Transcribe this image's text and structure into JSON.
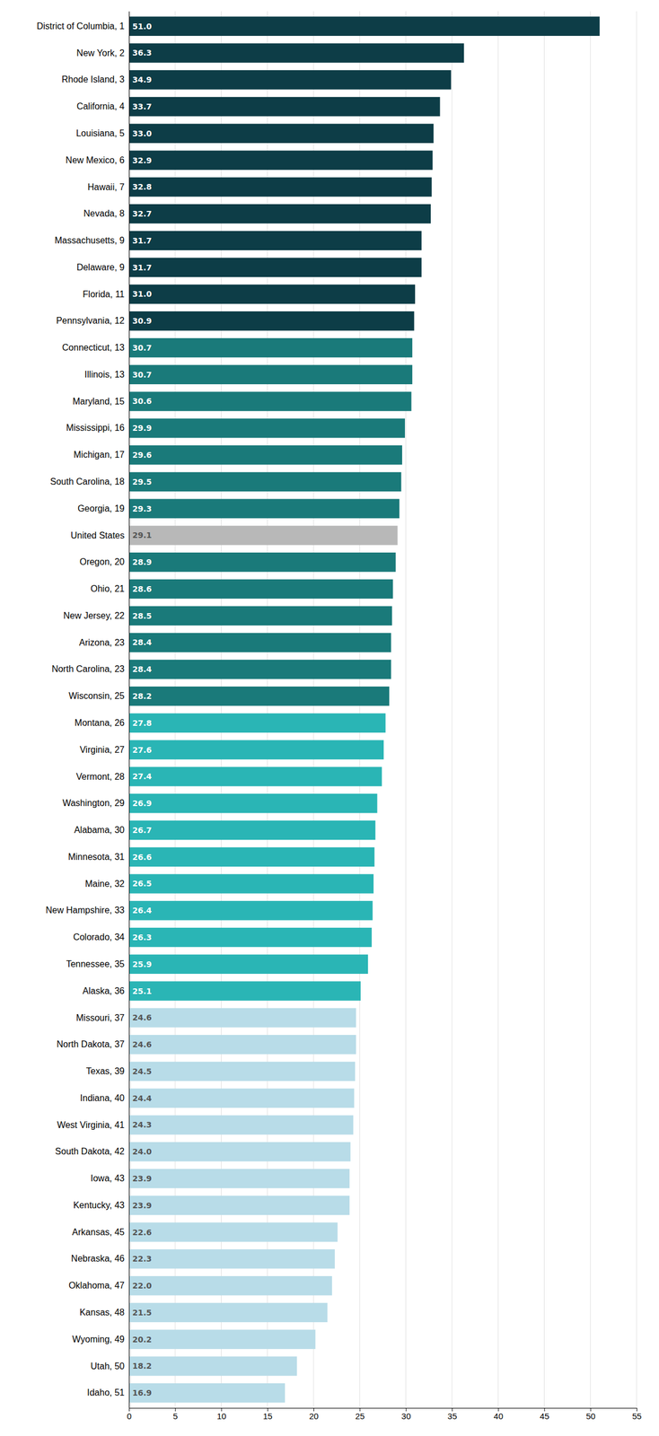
{
  "chart_data": {
    "type": "bar",
    "orientation": "horizontal",
    "categories": [
      "District of Columbia, 1",
      "New York, 2",
      "Rhode Island, 3",
      "California, 4",
      "Louisiana, 5",
      "New Mexico, 6",
      "Hawaii, 7",
      "Nevada, 8",
      "Massachusetts, 9",
      "Delaware, 9",
      "Florida, 11",
      "Pennsylvania, 12",
      "Connecticut, 13",
      "Illinois, 13",
      "Maryland, 15",
      "Mississippi, 16",
      "Michigan, 17",
      "South Carolina, 18",
      "Georgia, 19",
      "United States",
      "Oregon, 20",
      "Ohio, 21",
      "New Jersey, 22",
      "Arizona, 23",
      "North Carolina, 23",
      "Wisconsin, 25",
      "Montana, 26",
      "Virginia, 27",
      "Vermont, 28",
      "Washington, 29",
      "Alabama, 30",
      "Minnesota, 31",
      "Maine, 32",
      "New Hampshire, 33",
      "Colorado, 34",
      "Tennessee, 35",
      "Alaska, 36",
      "Missouri, 37",
      "North Dakota, 37",
      "Texas, 39",
      "Indiana, 40",
      "West Virginia, 41",
      "South Dakota, 42",
      "Iowa, 43",
      "Kentucky, 43",
      "Arkansas, 45",
      "Nebraska, 46",
      "Oklahoma, 47",
      "Kansas, 48",
      "Wyoming, 49",
      "Utah, 50",
      "Idaho, 51"
    ],
    "values": [
      51.0,
      36.3,
      34.9,
      33.7,
      33.0,
      32.9,
      32.8,
      32.7,
      31.7,
      31.7,
      31.0,
      30.9,
      30.7,
      30.7,
      30.6,
      29.9,
      29.6,
      29.5,
      29.3,
      29.1,
      28.9,
      28.6,
      28.5,
      28.4,
      28.4,
      28.2,
      27.8,
      27.6,
      27.4,
      26.9,
      26.7,
      26.6,
      26.5,
      26.4,
      26.3,
      25.9,
      25.1,
      24.6,
      24.6,
      24.5,
      24.4,
      24.3,
      24.0,
      23.9,
      23.9,
      22.6,
      22.3,
      22.0,
      21.5,
      20.2,
      18.2,
      16.9
    ],
    "value_labels": [
      "51.0",
      "36.3",
      "34.9",
      "33.7",
      "33.0",
      "32.9",
      "32.8",
      "32.7",
      "31.7",
      "31.7",
      "31.0",
      "30.9",
      "30.7",
      "30.7",
      "30.6",
      "29.9",
      "29.6",
      "29.5",
      "29.3",
      "29.1",
      "28.9",
      "28.6",
      "28.5",
      "28.4",
      "28.4",
      "28.2",
      "27.8",
      "27.6",
      "27.4",
      "26.9",
      "26.7",
      "26.6",
      "26.5",
      "26.4",
      "26.3",
      "25.9",
      "25.1",
      "24.6",
      "24.6",
      "24.5",
      "24.4",
      "24.3",
      "24.0",
      "23.9",
      "23.9",
      "22.6",
      "22.3",
      "22.0",
      "21.5",
      "20.2",
      "18.2",
      "16.9"
    ],
    "colors": [
      "#0d3d47",
      "#0d3d47",
      "#0d3d47",
      "#0d3d47",
      "#0d3d47",
      "#0d3d47",
      "#0d3d47",
      "#0d3d47",
      "#0d3d47",
      "#0d3d47",
      "#0d3d47",
      "#0d3d47",
      "#1a7a7a",
      "#1a7a7a",
      "#1a7a7a",
      "#1a7a7a",
      "#1a7a7a",
      "#1a7a7a",
      "#1a7a7a",
      "#b8b8b8",
      "#1a7a7a",
      "#1a7a7a",
      "#1a7a7a",
      "#1a7a7a",
      "#1a7a7a",
      "#1a7a7a",
      "#2ab5b5",
      "#2ab5b5",
      "#2ab5b5",
      "#2ab5b5",
      "#2ab5b5",
      "#2ab5b5",
      "#2ab5b5",
      "#2ab5b5",
      "#2ab5b5",
      "#2ab5b5",
      "#2ab5b5",
      "#b8dce8",
      "#b8dce8",
      "#b8dce8",
      "#b8dce8",
      "#b8dce8",
      "#b8dce8",
      "#b8dce8",
      "#b8dce8",
      "#b8dce8",
      "#b8dce8",
      "#b8dce8",
      "#b8dce8",
      "#b8dce8",
      "#b8dce8",
      "#b8dce8"
    ],
    "xlim": [
      0,
      55
    ],
    "xticks": [
      0,
      5,
      10,
      15,
      20,
      25,
      30,
      35,
      40,
      45,
      50,
      55
    ],
    "grid": true,
    "data_labels": true
  }
}
